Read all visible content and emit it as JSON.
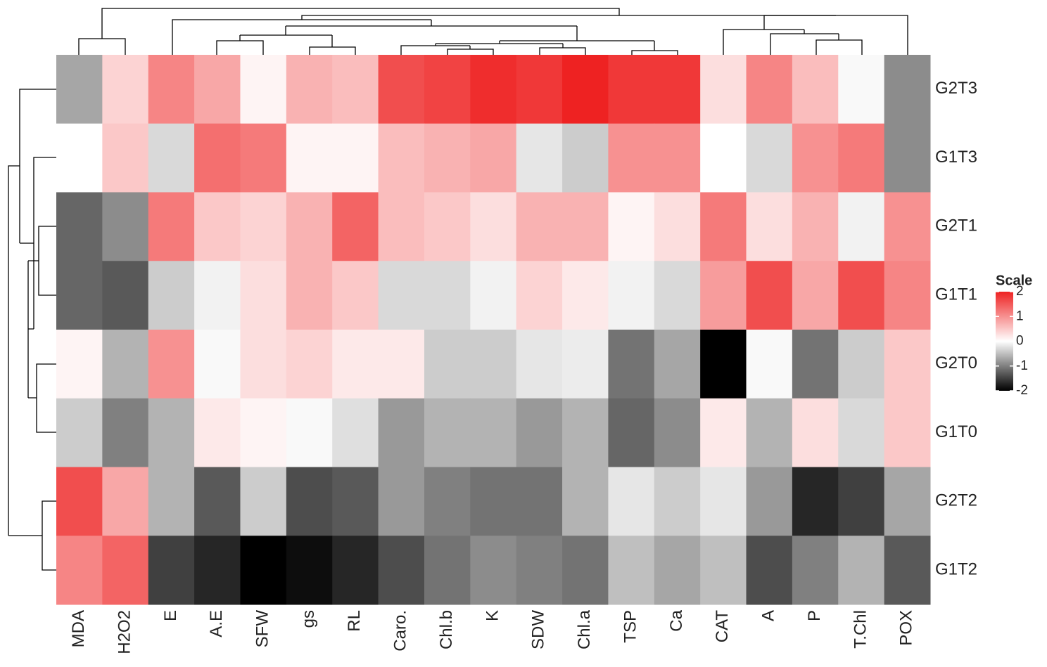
{
  "chart_data": {
    "type": "heatmap",
    "columns": [
      "MDA",
      "H2O2",
      "E",
      "A.E",
      "SFW",
      "gs",
      "RL",
      "Caro.",
      "Chl.b",
      "K",
      "SDW",
      "Chl.a",
      "TSP",
      "Ca",
      "CAT",
      "A",
      "P",
      "T.Chl",
      "POX"
    ],
    "rows": [
      "G2T3",
      "G1T3",
      "G2T1",
      "G1T1",
      "G2T0",
      "G1T0",
      "G2T2",
      "G1T2"
    ],
    "values": [
      [
        -0.7,
        0.4,
        1.1,
        0.8,
        0.1,
        0.7,
        0.6,
        1.6,
        1.7,
        1.9,
        1.8,
        2.0,
        1.8,
        1.8,
        0.3,
        1.1,
        0.6,
        -0.05,
        -0.9
      ],
      [
        0.0,
        0.5,
        -0.3,
        1.3,
        1.2,
        0.1,
        0.1,
        0.6,
        0.7,
        0.8,
        -0.2,
        -0.4,
        1.0,
        1.0,
        0.0,
        -0.3,
        1.0,
        1.2,
        -0.9
      ],
      [
        -1.2,
        -0.9,
        1.2,
        0.5,
        0.4,
        0.7,
        1.4,
        0.6,
        0.5,
        0.3,
        0.7,
        0.7,
        0.1,
        0.3,
        1.2,
        0.3,
        0.7,
        -0.1,
        1.0
      ],
      [
        -1.2,
        -1.3,
        -0.4,
        -0.1,
        0.3,
        0.7,
        0.5,
        -0.3,
        -0.3,
        -0.1,
        0.4,
        0.2,
        -0.1,
        -0.3,
        0.9,
        1.6,
        0.8,
        1.6,
        1.1
      ],
      [
        0.1,
        -0.6,
        1.0,
        -0.05,
        0.3,
        0.4,
        0.2,
        0.2,
        -0.4,
        -0.4,
        -0.2,
        -0.15,
        -1.1,
        -0.7,
        -2.0,
        -0.05,
        -1.1,
        -0.4,
        0.5
      ],
      [
        -0.4,
        -1.0,
        -0.6,
        0.2,
        0.1,
        -0.05,
        -0.25,
        -0.8,
        -0.6,
        -0.6,
        -0.8,
        -0.6,
        -1.2,
        -0.9,
        0.2,
        -0.6,
        0.3,
        -0.3,
        0.5
      ],
      [
        1.6,
        0.8,
        -0.6,
        -1.3,
        -0.4,
        -1.4,
        -1.3,
        -0.8,
        -1.0,
        -1.1,
        -1.1,
        -0.6,
        -0.2,
        -0.4,
        -0.2,
        -0.8,
        -1.7,
        -1.5,
        -0.7
      ],
      [
        1.1,
        1.4,
        -1.5,
        -1.7,
        -2.0,
        -1.9,
        -1.7,
        -1.4,
        -1.1,
        -0.9,
        -1.0,
        -1.1,
        -0.5,
        -0.7,
        -0.5,
        -1.4,
        -1.0,
        -0.6,
        -1.3
      ]
    ],
    "legend_title": "Scale",
    "zlim": [
      -2,
      2
    ],
    "zticks": [
      2,
      1,
      0,
      -1,
      -2
    ],
    "colors": {
      "low": "#000000",
      "mid": "#ffffff",
      "high": "#ee2222"
    }
  }
}
